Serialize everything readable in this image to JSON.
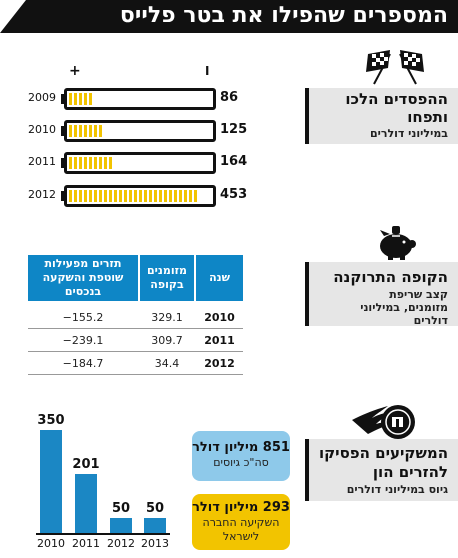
{
  "header": {
    "title": "המספרים שהפילו את בטר פלייס"
  },
  "sections": {
    "losses": {
      "title_line1": "ההפסדים הלכו",
      "title_line2": "ותפחו",
      "subtitle": "במיליוני דולרים"
    },
    "cash": {
      "title": "הקופה התרוקנה",
      "subtitle_line1": "קצב שריפת",
      "subtitle_line2": "מזומנים, במיליוני",
      "subtitle_line3": "דולרים"
    },
    "investors": {
      "title_line1": "המשקיעים הפסיקו",
      "title_line2": "להזרים הון",
      "subtitle": "גיוס במיליוני דולרים"
    }
  },
  "battery": {
    "plus_sign": "+",
    "minus_sign": "I"
  },
  "table": {
    "headers": [
      "שנה",
      "מזומנים בקופה",
      "תזרים מפעילות שוטפת והשקעה בנכסים"
    ],
    "rows": [
      {
        "year": "2010",
        "cash": "329.1",
        "flow": "−155.2"
      },
      {
        "year": "2011",
        "cash": "309.7",
        "flow": "−239.1"
      },
      {
        "year": "2012",
        "cash": "34.4",
        "flow": "−184.7"
      }
    ]
  },
  "callouts": {
    "total_value": "851 מיליון דולר",
    "total_label": "סה\"כ גיוסים",
    "israel_value": "293 מיליון דולר",
    "israel_label_line1": "השקיעה החברה",
    "israel_label_line2": "לישראל"
  },
  "colors": {
    "blue": "#1b87c4",
    "yellow": "#f2c400",
    "header": "#111111",
    "panel": "#e6e6e6"
  },
  "icons": [
    "checkered-flags-icon",
    "piggy-bank-icon",
    "flaming-coin-icon"
  ],
  "chart_data": [
    {
      "type": "bar",
      "name_hint": "losses",
      "categories": [
        "2009",
        "2010",
        "2011",
        "2012"
      ],
      "values": [
        86,
        125,
        164,
        453
      ]
    },
    {
      "type": "table",
      "columns": [
        "שנה",
        "מזומנים בקופה",
        "תזרים מפעילות שוטפת והשקעה בנכסים"
      ],
      "rows": [
        [
          "2010",
          329.1,
          -155.2
        ],
        [
          "2011",
          309.7,
          -239.1
        ],
        [
          "2012",
          34.4,
          -184.7
        ]
      ]
    },
    {
      "type": "bar",
      "name_hint": "investments",
      "categories": [
        "2010",
        "2011",
        "2012",
        "2013"
      ],
      "values": [
        350,
        201,
        50,
        50
      ]
    }
  ]
}
